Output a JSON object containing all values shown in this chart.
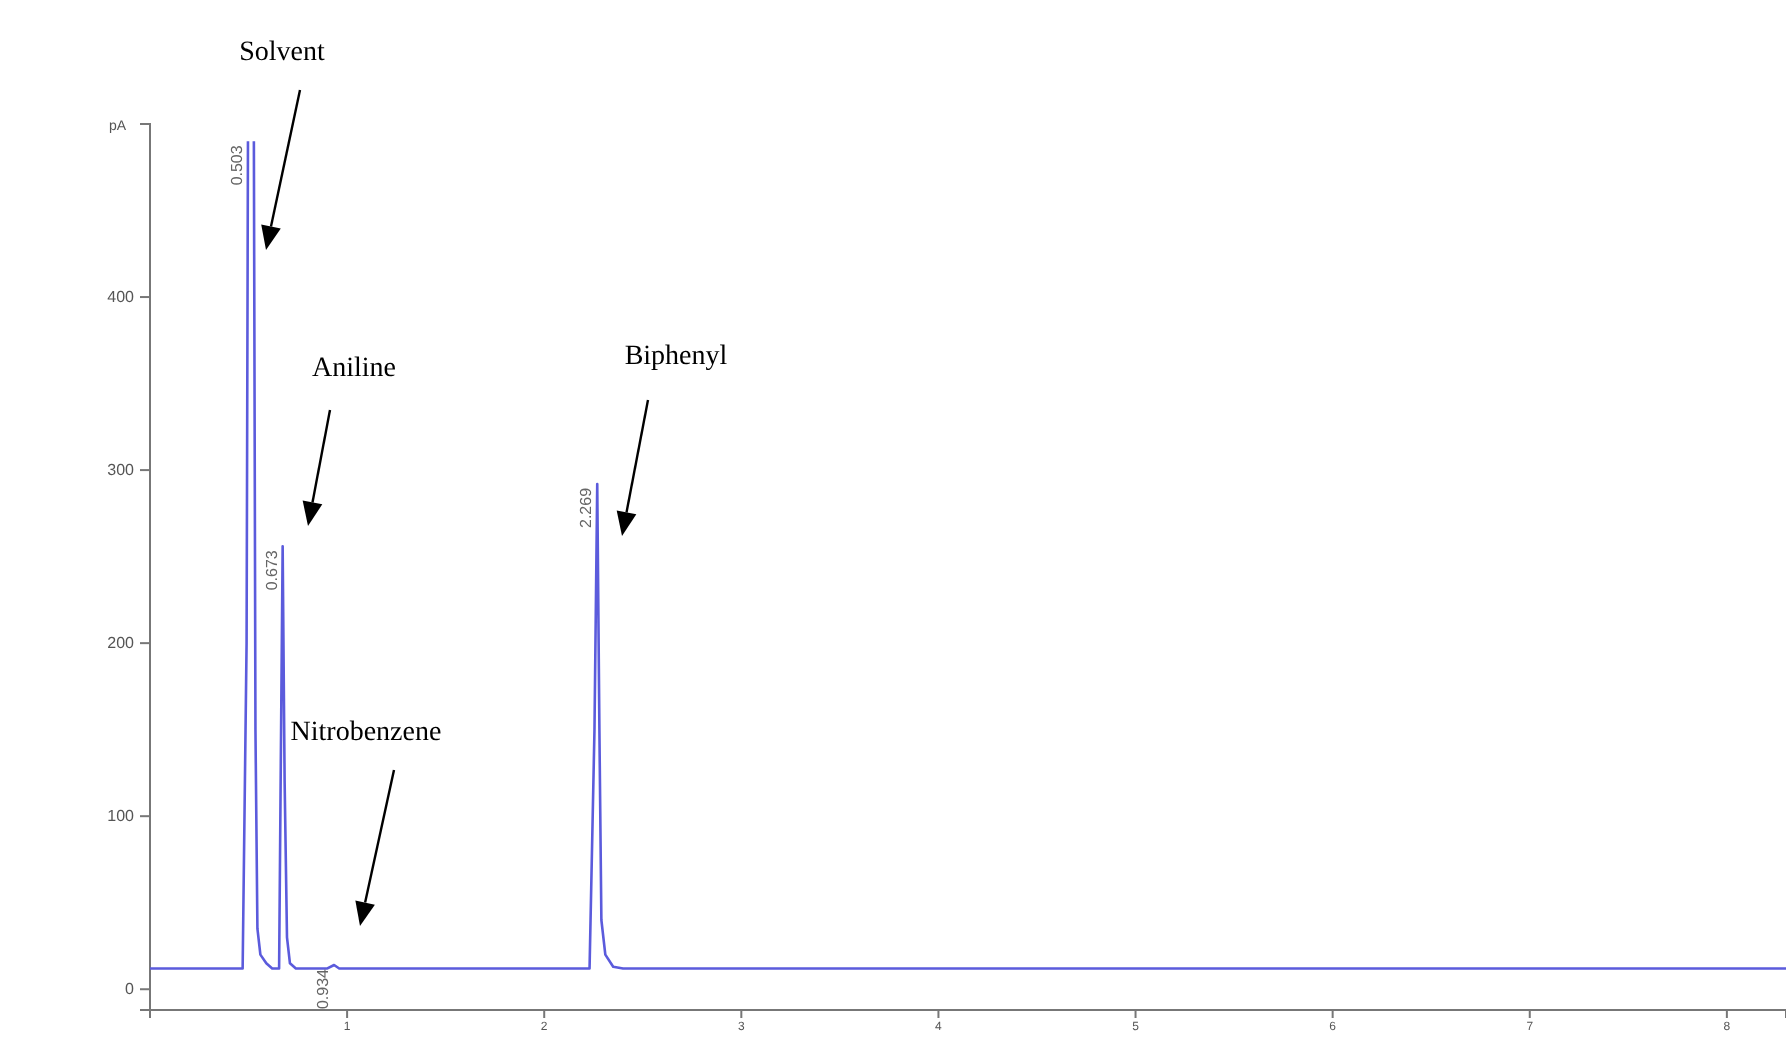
{
  "chart_data": {
    "type": "line",
    "ylabel": "pA",
    "x": [
      0,
      0.47,
      0.49,
      0.497,
      0.5,
      0.52,
      0.527,
      0.535,
      0.545,
      0.56,
      0.59,
      0.62,
      0.655,
      0.665,
      0.673,
      0.683,
      0.695,
      0.71,
      0.74,
      0.9,
      0.934,
      0.96,
      2.23,
      2.255,
      2.269,
      2.28,
      2.29,
      2.31,
      2.35,
      2.4,
      8.3
    ],
    "series": [
      {
        "color": "#5b5bdc",
        "values": [
          12,
          12,
          200,
          490,
          null,
          null,
          490,
          150,
          35,
          20,
          15,
          12,
          12,
          150,
          256,
          120,
          30,
          15,
          12,
          12,
          14,
          12,
          12,
          150,
          292,
          150,
          40,
          20,
          13,
          12,
          12
        ]
      }
    ],
    "xlim": [
      0,
      8.3
    ],
    "xticks": [
      1,
      2,
      3,
      4,
      5,
      6,
      7,
      8
    ],
    "ylim": [
      -12,
      500
    ],
    "yticks": [
      0,
      100,
      200,
      300,
      400
    ],
    "annotations": [
      "Solvent",
      "Aniline",
      "Nitrobenzene",
      "Biphenyl",
      {
        "text": "0.503",
        "x": 0.497,
        "y": 490
      },
      {
        "text": "0.673",
        "x": 0.673,
        "y": 256
      },
      {
        "text": "0.934",
        "x": 0.934,
        "y": 14
      },
      {
        "text": "2.269",
        "x": 2.269,
        "y": 292
      }
    ],
    "grid": false,
    "marker": "none",
    "line_style": "solid"
  }
}
